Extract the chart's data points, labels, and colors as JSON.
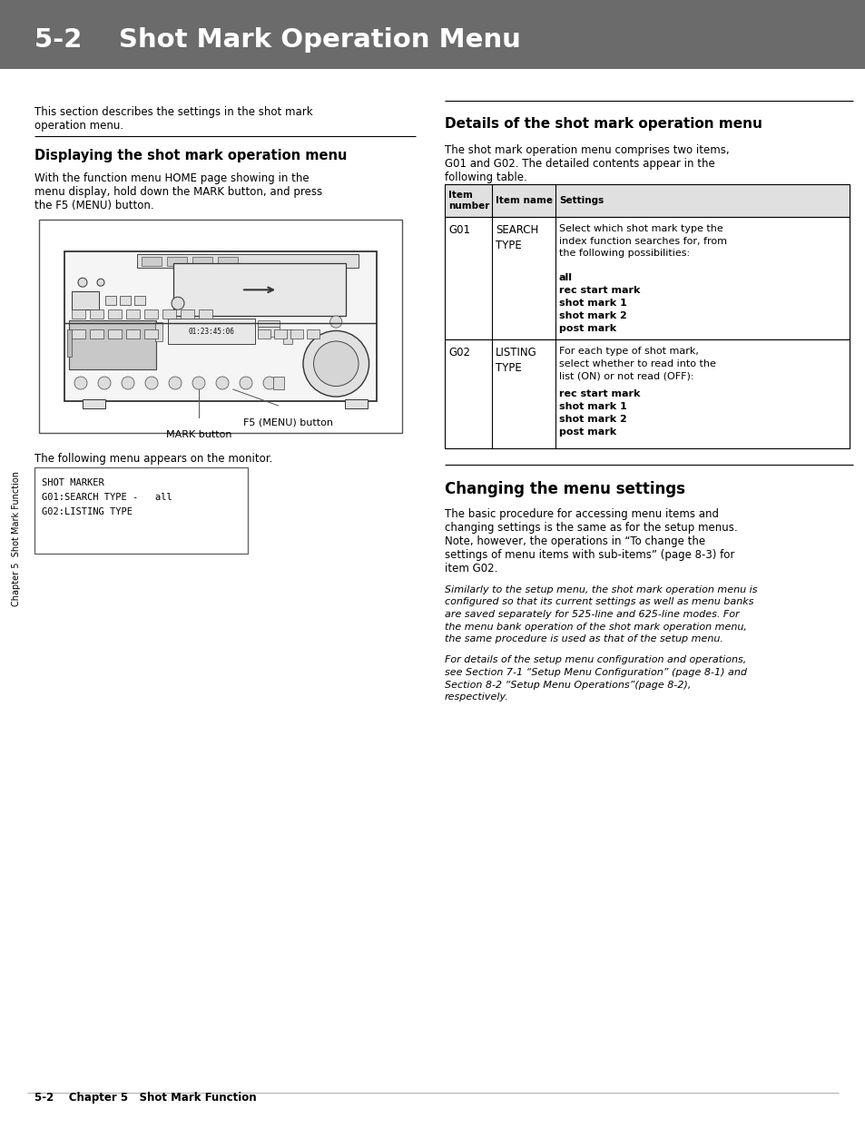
{
  "header_bg": "#6b6b6b",
  "header_text": "5-2    Shot Mark Operation Menu",
  "header_text_color": "#ffffff",
  "page_bg": "#ffffff",
  "body_text_color": "#000000",
  "section1_heading": "Displaying the shot mark operation menu",
  "section2_heading": "Details of the shot mark operation menu",
  "section3_heading": "Changing the menu settings",
  "footer_text": "5-2    Chapter 5   Shot Mark Function",
  "sidebar_text": "Chapter 5  Shot Mark Function"
}
